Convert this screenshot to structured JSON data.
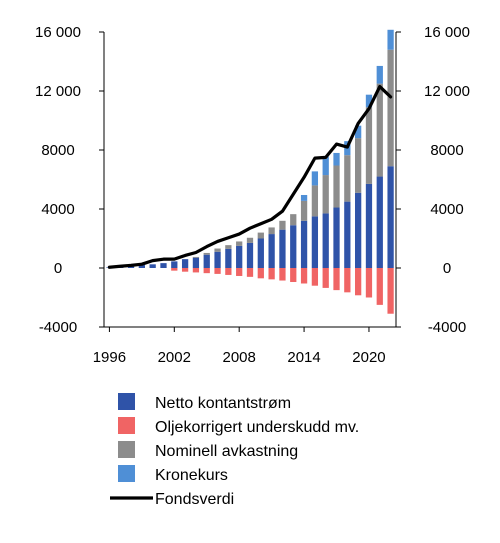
{
  "chart_data": {
    "type": "bar",
    "stacked": true,
    "x": [
      1996,
      1997,
      1998,
      1999,
      2000,
      2001,
      2002,
      2003,
      2004,
      2005,
      2006,
      2007,
      2008,
      2009,
      2010,
      2011,
      2012,
      2013,
      2014,
      2015,
      2016,
      2017,
      2018,
      2019,
      2020,
      2021,
      2022
    ],
    "xticks": [
      1996,
      2002,
      2008,
      2014,
      2020
    ],
    "xtick_labels": [
      "1996",
      "2002",
      "2008",
      "2014",
      "2020"
    ],
    "ylim": [
      -4000,
      16000
    ],
    "yticks": [
      -4000,
      0,
      4000,
      8000,
      12000,
      16000
    ],
    "ytick_labels": [
      "-4000",
      "0",
      "4000",
      "8000",
      "12 000",
      "16 000"
    ],
    "secondary_y_axis": true,
    "grid": false,
    "legend_position": "bottom",
    "series": [
      {
        "name": "Netto kontantstrøm",
        "color": "#2f53a8",
        "values": [
          40,
          100,
          160,
          200,
          250,
          330,
          450,
          600,
          700,
          900,
          1100,
          1300,
          1500,
          1700,
          2000,
          2300,
          2600,
          2900,
          3200,
          3500,
          3700,
          4100,
          4500,
          5100,
          5700,
          6200,
          6900
        ]
      },
      {
        "name": "Oljekorrigert underskudd mv.",
        "color": "#f06464",
        "values": [
          0,
          0,
          0,
          0,
          0,
          0,
          -180,
          -250,
          -300,
          -350,
          -400,
          -470,
          -540,
          -600,
          -700,
          -770,
          -850,
          -950,
          -1050,
          -1200,
          -1350,
          -1500,
          -1650,
          -1850,
          -2000,
          -2500,
          -3100
        ]
      },
      {
        "name": "Nominell avkastning",
        "color": "#8c8c8c",
        "values": [
          0,
          0,
          0,
          0,
          0,
          0,
          0,
          0,
          50,
          120,
          220,
          250,
          300,
          350,
          400,
          450,
          600,
          750,
          1350,
          2100,
          2600,
          2850,
          3150,
          3700,
          5200,
          6300,
          7900
        ]
      },
      {
        "name": "Kronekurs",
        "color": "#4f8fd6",
        "values": [
          0,
          0,
          0,
          0,
          0,
          0,
          0,
          0,
          0,
          0,
          0,
          0,
          0,
          0,
          0,
          0,
          0,
          0,
          400,
          950,
          1250,
          850,
          950,
          850,
          850,
          1200,
          1350
        ]
      }
    ],
    "line_series": {
      "name": "Fondsverdi",
      "color": "#000000",
      "values": [
        50,
        120,
        180,
        260,
        500,
        600,
        600,
        850,
        1050,
        1450,
        1800,
        2050,
        2300,
        2700,
        3000,
        3300,
        3850,
        5000,
        6150,
        7450,
        7500,
        8400,
        8200,
        9800,
        10800,
        12300,
        11600
      ]
    }
  }
}
